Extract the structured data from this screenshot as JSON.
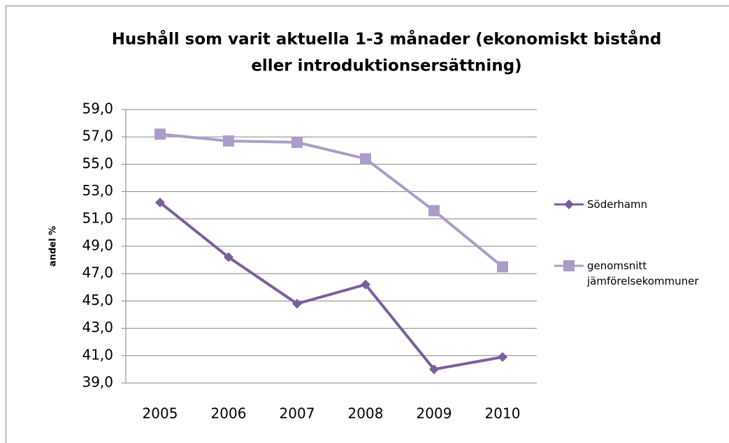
{
  "chart_data": {
    "type": "line",
    "title": [
      "Hushåll som varit aktuella 1-3 månader (ekonomiskt bistånd",
      "eller introduktionsersättning)"
    ],
    "ylabel": "andel %",
    "categories": [
      "2005",
      "2006",
      "2007",
      "2008",
      "2009",
      "2010"
    ],
    "series": [
      {
        "name": "Söderhamn",
        "color": "#7b5f9c",
        "marker": "diamond",
        "values": [
          52.2,
          48.2,
          44.8,
          46.2,
          40.0,
          40.9
        ]
      },
      {
        "name": "genomsnitt jämförelsekommuner",
        "color": "#ab9dc7",
        "marker": "square",
        "values": [
          57.2,
          56.7,
          56.6,
          55.4,
          51.6,
          47.5
        ]
      }
    ],
    "ylim": [
      39,
      59
    ],
    "yticks": [
      {
        "value": 39,
        "label": "39,0"
      },
      {
        "value": 41,
        "label": "41,0"
      },
      {
        "value": 43,
        "label": "43,0"
      },
      {
        "value": 45,
        "label": "45,0"
      },
      {
        "value": 47,
        "label": "47,0"
      },
      {
        "value": 49,
        "label": "49,0"
      },
      {
        "value": 51,
        "label": "51,0"
      },
      {
        "value": 53,
        "label": "53,0"
      },
      {
        "value": 55,
        "label": "55,0"
      },
      {
        "value": 57,
        "label": "57,0"
      },
      {
        "value": 59,
        "label": "59,0"
      }
    ],
    "grid": true,
    "legend": "right"
  }
}
